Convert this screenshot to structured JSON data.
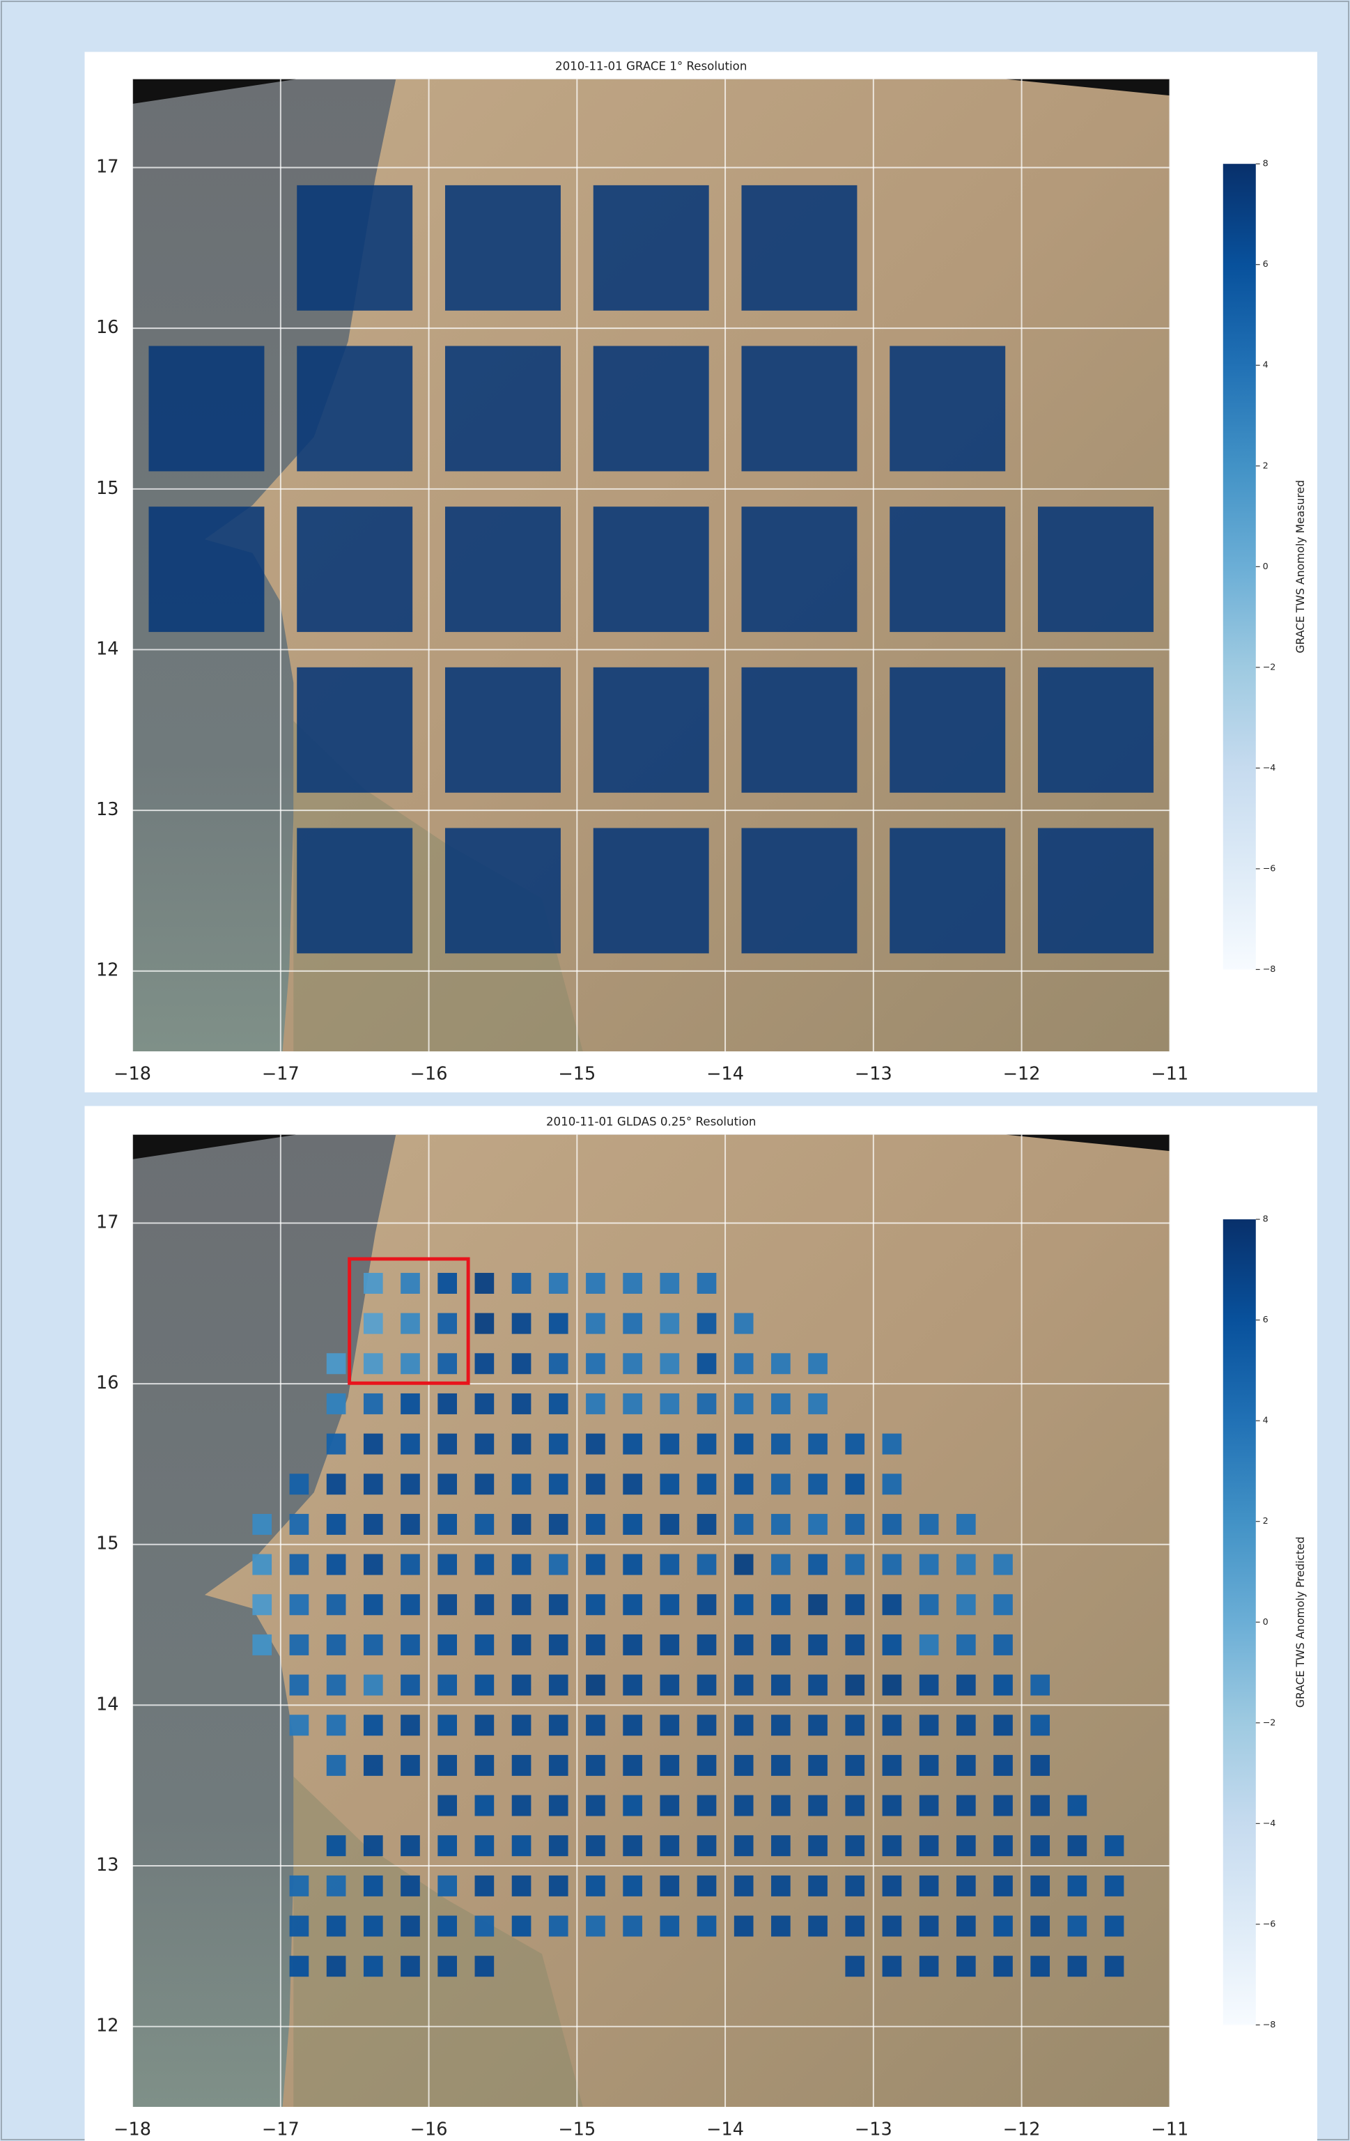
{
  "chart_data": [
    {
      "type": "heatmap",
      "title": "2010-11-01 GRACE 1° Resolution",
      "colorbar_label": "GRACE TWS Anomoly Measured",
      "x": [
        -17.5,
        -16.5,
        -15.5,
        -14.5,
        -13.5,
        -12.5,
        -11.5
      ],
      "y": [
        16.5,
        15.5,
        14.5,
        13.5,
        12.5
      ],
      "values": [
        [
          null,
          7.5,
          7.5,
          7.5,
          7.5,
          null,
          null
        ],
        [
          7.5,
          7.5,
          7.5,
          7.5,
          7.5,
          7.5,
          null
        ],
        [
          7.5,
          7.5,
          7.5,
          7.5,
          7.5,
          7.5,
          7.5
        ],
        [
          null,
          7.5,
          7.5,
          7.5,
          7.5,
          7.5,
          7.5
        ],
        [
          null,
          7.5,
          7.5,
          7.5,
          7.5,
          7.5,
          7.5
        ]
      ],
      "xlim": [
        -18,
        -11
      ],
      "ylim": [
        11.5,
        17.55
      ],
      "xticks": [
        {
          "value": -18,
          "label": "−18"
        },
        {
          "value": -17,
          "label": "−17"
        },
        {
          "value": -16,
          "label": "−16"
        },
        {
          "value": -15,
          "label": "−15"
        },
        {
          "value": -14,
          "label": "−14"
        },
        {
          "value": -13,
          "label": "−13"
        },
        {
          "value": -12,
          "label": "−12"
        },
        {
          "value": -11,
          "label": "−11"
        }
      ],
      "yticks": [
        12,
        13,
        14,
        15,
        16,
        17
      ],
      "clim": [
        -8,
        8
      ],
      "cticks": [
        {
          "value": -8,
          "label": "−8"
        },
        {
          "value": -6,
          "label": "−6"
        },
        {
          "value": -4,
          "label": "−4"
        },
        {
          "value": -2,
          "label": "−2"
        },
        0,
        2,
        4,
        6,
        8
      ],
      "colormap": "Blues",
      "grid": true
    },
    {
      "type": "heatmap",
      "title": "2010-11-01 GLDAS 0.25° Resolution",
      "colorbar_label": "GRACE TWS Anomoly Predicted",
      "x": [
        -17.125,
        -16.875,
        -16.625,
        -16.375,
        -16.125,
        -15.875,
        -15.625,
        -15.375,
        -15.125,
        -14.875,
        -14.625,
        -14.375,
        -14.125,
        -13.875,
        -13.625,
        -13.375,
        -13.125,
        -12.875,
        -12.625,
        -12.375,
        -12.125,
        -11.875,
        -11.625,
        -11.375
      ],
      "y": [
        16.625,
        16.375,
        16.125,
        15.875,
        15.625,
        15.375,
        15.125,
        14.875,
        14.625,
        14.375,
        14.125,
        13.875,
        13.625,
        13.375,
        13.125,
        12.875,
        12.625,
        12.375
      ],
      "values": [
        [
          null,
          null,
          null,
          1.5,
          3,
          6,
          7,
          5,
          3.5,
          3.5,
          3.5,
          3.5,
          4,
          null,
          null,
          null,
          null,
          null,
          null,
          null,
          null,
          null,
          null,
          null
        ],
        [
          null,
          null,
          null,
          1,
          2.5,
          5,
          7,
          6.5,
          6,
          3.5,
          4,
          3,
          5.5,
          3.5,
          null,
          null,
          null,
          null,
          null,
          null,
          null,
          null,
          null,
          null
        ],
        [
          null,
          null,
          1.5,
          1.5,
          2.5,
          5,
          6.5,
          6.5,
          5,
          4,
          3.5,
          3,
          6,
          4,
          3.5,
          3.5,
          null,
          null,
          null,
          null,
          null,
          null,
          null,
          null
        ],
        [
          null,
          null,
          3,
          4.5,
          6,
          6.5,
          6.5,
          6.5,
          6,
          3.5,
          3.5,
          3.5,
          4.5,
          4,
          4,
          3.5,
          null,
          null,
          null,
          null,
          null,
          null,
          null,
          null
        ],
        [
          null,
          null,
          5,
          6.5,
          6,
          6.5,
          6.5,
          6.5,
          6,
          6.5,
          6,
          6,
          6,
          6,
          5.5,
          5.5,
          5.5,
          4.5,
          null,
          null,
          null,
          null,
          null,
          null
        ],
        [
          null,
          5,
          6.5,
          6.5,
          6.5,
          6.5,
          6.5,
          6,
          6,
          6.5,
          6.5,
          6,
          6,
          6,
          5,
          5.5,
          6,
          4.5,
          null,
          null,
          null,
          null,
          null,
          null
        ],
        [
          2.5,
          4.5,
          6,
          6.5,
          6.5,
          6,
          5.5,
          6.5,
          6.5,
          6,
          6,
          6.5,
          6.5,
          5,
          4.5,
          4,
          5,
          5,
          4.5,
          4,
          null,
          null,
          null,
          null
        ],
        [
          2,
          5,
          6,
          6.5,
          5.5,
          6,
          6,
          6,
          4.5,
          6,
          6,
          5.5,
          5,
          7,
          4.5,
          5.5,
          4.5,
          4.5,
          4,
          3.5,
          3.5,
          null,
          null,
          null
        ],
        [
          1.5,
          4,
          5,
          6,
          6,
          6.5,
          6.5,
          6.5,
          6.5,
          6,
          6,
          6,
          6.5,
          6,
          6,
          7,
          6.5,
          6.5,
          4.5,
          3.5,
          4,
          null,
          null,
          null
        ],
        [
          2,
          4.5,
          5,
          5,
          5.5,
          6,
          6,
          6.5,
          6.5,
          6.5,
          6.5,
          6.5,
          6.5,
          6.5,
          6.5,
          6.5,
          6.5,
          6,
          3.5,
          4.5,
          5,
          null,
          null,
          null
        ],
        [
          null,
          4.5,
          4.5,
          3,
          5.5,
          5.5,
          6,
          6.5,
          6.5,
          7,
          6.5,
          6.5,
          6.5,
          6.5,
          6.5,
          6.5,
          7,
          7,
          6.5,
          6.5,
          6,
          5,
          null,
          null
        ],
        [
          null,
          3.5,
          4,
          6,
          6.5,
          6,
          6.5,
          6.5,
          6.5,
          6.5,
          6.5,
          6.5,
          6.5,
          6.5,
          6.5,
          6.5,
          6.5,
          6.5,
          6.5,
          6.5,
          6.5,
          5.5,
          null,
          null
        ],
        [
          null,
          null,
          4.5,
          6.5,
          6.5,
          6.5,
          6.5,
          6.5,
          6.5,
          6.5,
          6.5,
          6.5,
          6.5,
          6.5,
          6.5,
          6.5,
          6.5,
          6.5,
          6.5,
          6.5,
          6.5,
          6.5,
          null,
          null
        ],
        [
          null,
          null,
          null,
          null,
          null,
          6.5,
          6,
          6.5,
          6.5,
          6.5,
          6,
          6.5,
          6.5,
          6.5,
          6.5,
          6.5,
          6.5,
          6.5,
          6.5,
          6.5,
          6.5,
          6.5,
          6,
          null
        ],
        [
          null,
          null,
          6,
          6.5,
          6.5,
          6,
          6,
          6,
          6.5,
          6.5,
          6.5,
          6.5,
          6.5,
          6.5,
          6.5,
          6.5,
          6.5,
          6.5,
          6.5,
          6.5,
          6.5,
          6.5,
          6.5,
          6
        ],
        [
          null,
          4.5,
          4.5,
          6,
          6.5,
          5,
          6.5,
          6.5,
          6.5,
          6,
          6,
          6.5,
          6.5,
          6.5,
          6.5,
          6.5,
          6.5,
          6.5,
          6.5,
          6.5,
          6.5,
          6.5,
          6,
          6
        ],
        [
          null,
          5.5,
          6,
          6,
          6.5,
          6,
          5,
          6,
          5,
          4.5,
          5,
          5.5,
          5.5,
          6.5,
          6.5,
          6.5,
          6.5,
          6.5,
          6.5,
          6.5,
          6,
          6.5,
          5.5,
          6
        ],
        [
          null,
          6,
          6.5,
          6,
          6.5,
          6.5,
          6.5,
          null,
          null,
          null,
          null,
          null,
          null,
          null,
          null,
          null,
          6.5,
          6.5,
          6.5,
          6.5,
          6.5,
          6.5,
          6.5,
          6.5
        ]
      ],
      "xlim": [
        -18,
        -11
      ],
      "ylim": [
        11.5,
        17.55
      ],
      "xticks": [
        {
          "value": -18,
          "label": "−18"
        },
        {
          "value": -17,
          "label": "−17"
        },
        {
          "value": -16,
          "label": "−16"
        },
        {
          "value": -15,
          "label": "−15"
        },
        {
          "value": -14,
          "label": "−14"
        },
        {
          "value": -13,
          "label": "−13"
        },
        {
          "value": -12,
          "label": "−12"
        },
        {
          "value": -11,
          "label": "−11"
        }
      ],
      "yticks": [
        12,
        13,
        14,
        15,
        16,
        17
      ],
      "clim": [
        -8,
        8
      ],
      "cticks": [
        {
          "value": -8,
          "label": "−8"
        },
        {
          "value": -6,
          "label": "−6"
        },
        {
          "value": -4,
          "label": "−4"
        },
        {
          "value": -2,
          "label": "−2"
        },
        0,
        2,
        4,
        6,
        8
      ],
      "colormap": "Blues",
      "grid": true
    }
  ]
}
